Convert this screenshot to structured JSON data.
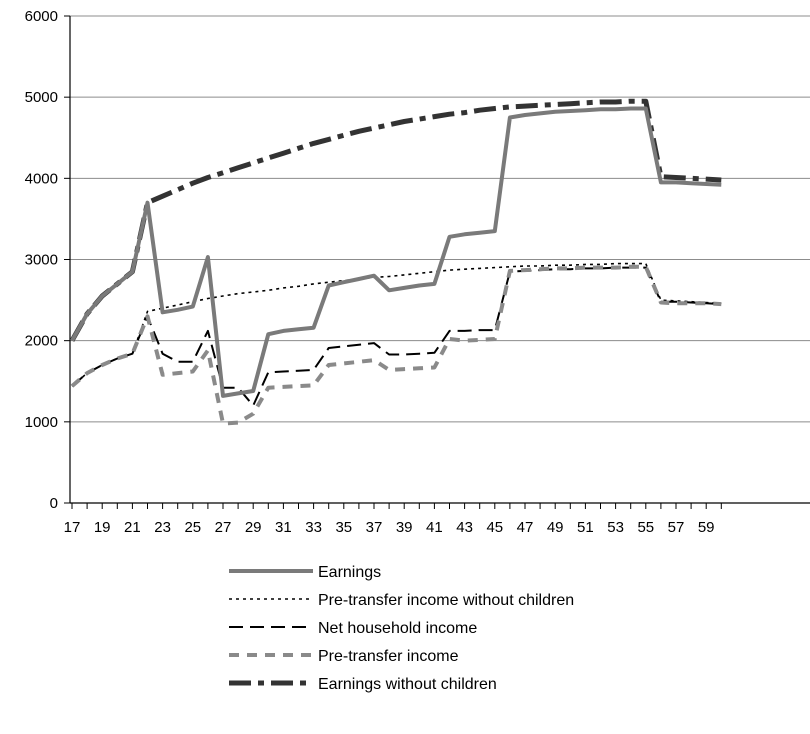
{
  "chart_data": {
    "type": "line",
    "title": "",
    "xlabel": "",
    "ylabel": "",
    "xlim": [
      17,
      60
    ],
    "ylim": [
      0,
      6000
    ],
    "y_ticks": [
      0,
      1000,
      2000,
      3000,
      4000,
      5000,
      6000
    ],
    "x_tick_labels": [
      "17",
      "19",
      "21",
      "23",
      "25",
      "27",
      "29",
      "31",
      "33",
      "35",
      "37",
      "39",
      "41",
      "43",
      "45",
      "47",
      "49",
      "51",
      "53",
      "55",
      "57",
      "59"
    ],
    "grid": "horizontal",
    "legend_position": "bottom",
    "x": [
      17,
      18,
      19,
      20,
      21,
      22,
      23,
      24,
      25,
      26,
      27,
      28,
      29,
      30,
      31,
      32,
      33,
      34,
      35,
      36,
      37,
      38,
      39,
      40,
      41,
      42,
      43,
      44,
      45,
      46,
      47,
      48,
      49,
      50,
      51,
      52,
      53,
      54,
      55,
      56,
      57,
      58,
      59,
      60
    ],
    "series": [
      {
        "name": "Earnings",
        "color": "#7a7a7a",
        "style": "solid",
        "values": [
          2000,
          2330,
          2550,
          2700,
          2850,
          3700,
          2350,
          2380,
          2420,
          3030,
          1320,
          1350,
          1380,
          2080,
          2120,
          2140,
          2160,
          2680,
          2720,
          2760,
          2800,
          2620,
          2650,
          2680,
          2700,
          3280,
          3310,
          3330,
          3350,
          4750,
          4780,
          4800,
          4820,
          4830,
          4840,
          4850,
          4850,
          4860,
          4860,
          3950,
          3950,
          3940,
          3930,
          3920
        ]
      },
      {
        "name": "Pre-transfer income without children",
        "color": "#000000",
        "style": "dotted",
        "values": [
          1440,
          1600,
          1700,
          1780,
          1840,
          2360,
          2400,
          2440,
          2480,
          2520,
          2550,
          2580,
          2600,
          2620,
          2650,
          2670,
          2700,
          2720,
          2740,
          2760,
          2780,
          2790,
          2810,
          2830,
          2850,
          2870,
          2880,
          2890,
          2900,
          2910,
          2920,
          2920,
          2930,
          2930,
          2940,
          2940,
          2950,
          2950,
          2950,
          2500,
          2490,
          2480,
          2470,
          2460
        ]
      },
      {
        "name": "Net household income",
        "color": "#000000",
        "style": "dashed",
        "values": [
          1440,
          1600,
          1700,
          1780,
          1840,
          2300,
          1840,
          1740,
          1740,
          2120,
          1420,
          1420,
          1200,
          1610,
          1620,
          1630,
          1640,
          1910,
          1930,
          1950,
          1970,
          1830,
          1830,
          1840,
          1850,
          2120,
          2120,
          2130,
          2130,
          2850,
          2860,
          2870,
          2880,
          2880,
          2890,
          2890,
          2900,
          2900,
          2900,
          2480,
          2480,
          2470,
          2460,
          2450
        ]
      },
      {
        "name": "Pre-transfer income",
        "color": "#8a8a8a",
        "style": "dashed-thick",
        "values": [
          1440,
          1600,
          1700,
          1780,
          1840,
          2300,
          1580,
          1600,
          1620,
          1880,
          980,
          990,
          1100,
          1420,
          1430,
          1440,
          1450,
          1700,
          1720,
          1740,
          1760,
          1640,
          1650,
          1660,
          1670,
          2020,
          2000,
          2010,
          2020,
          2860,
          2870,
          2880,
          2890,
          2890,
          2900,
          2900,
          2900,
          2910,
          2910,
          2470,
          2460,
          2460,
          2460,
          2450
        ]
      },
      {
        "name": "Earnings without children",
        "color": "#333333",
        "style": "dash-dot-thick",
        "values": [
          2000,
          2330,
          2550,
          2700,
          2850,
          3700,
          3780,
          3860,
          3940,
          4010,
          4070,
          4130,
          4190,
          4250,
          4310,
          4370,
          4430,
          4480,
          4530,
          4580,
          4620,
          4660,
          4700,
          4730,
          4760,
          4790,
          4810,
          4840,
          4860,
          4880,
          4890,
          4900,
          4910,
          4920,
          4930,
          4940,
          4940,
          4950,
          4950,
          4020,
          4010,
          4000,
          3990,
          3980
        ]
      }
    ]
  }
}
